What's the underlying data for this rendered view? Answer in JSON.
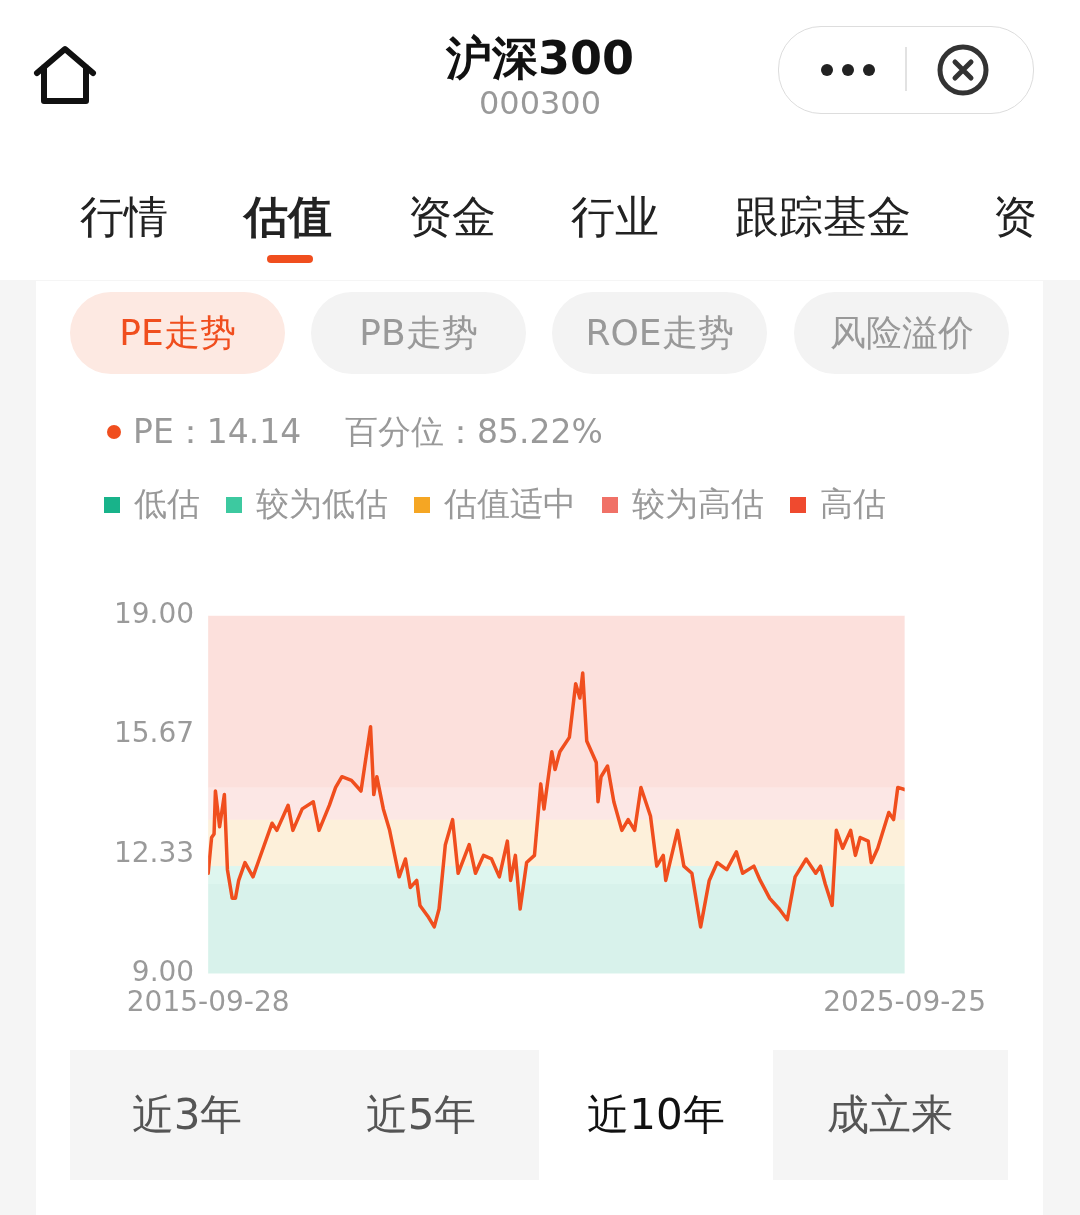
{
  "chart_data": {
    "type": "line",
    "title": "沪深300",
    "subtitle": "000300",
    "annotations": [
      "PE：14.14",
      "百分位：85.22%",
      "行情",
      "估值",
      "资金",
      "行业",
      "跟踪基金",
      "资",
      "PE走势",
      "PB走势",
      "ROE走势",
      "风险溢价",
      "近3年",
      "近5年",
      "近10年",
      "成立来"
    ],
    "x": [
      "2015-09-28",
      "2015-10-16",
      "2015-10-29",
      "2015-11-05",
      "2015-11-27",
      "2015-12-22",
      "2016-01-07",
      "2016-02-01",
      "2016-02-18",
      "2016-03-06",
      "2016-04-08",
      "2016-05-20",
      "2016-06-22",
      "2016-08-28",
      "2016-09-22",
      "2016-11-20",
      "2016-12-15",
      "2017-02-02",
      "2017-04-01",
      "2017-05-01",
      "2017-06-24",
      "2017-07-27",
      "2017-08-29",
      "2017-10-18",
      "2017-12-07",
      "2018-01-26",
      "2018-02-12",
      "2018-02-28",
      "2018-04-03",
      "2018-05-06",
      "2018-06-25",
      "2018-07-28",
      "2018-08-22",
      "2018-09-25",
      "2018-10-12",
      "2018-11-22",
      "2018-12-26",
      "2019-01-20",
      "2019-02-22",
      "2019-04-01",
      "2019-04-30",
      "2019-06-27",
      "2019-07-30",
      "2019-09-10",
      "2019-10-22",
      "2019-12-02",
      "2020-01-13",
      "2020-01-30",
      "2020-02-24",
      "2020-03-20",
      "2020-04-23",
      "2020-06-03",
      "2020-07-06",
      "2020-07-23",
      "2020-09-02",
      "2020-09-19",
      "2020-10-14",
      "2020-12-03",
      "2021-01-05",
      "2021-01-27",
      "2021-02-11",
      "2021-03-04",
      "2021-04-23",
      "2021-05-02",
      "2021-05-18",
      "2021-06-21",
      "2021-07-24",
      "2021-09-04",
      "2021-10-07",
      "2021-11-10",
      "2021-12-13",
      "2022-02-01",
      "2022-03-06",
      "2022-04-09",
      "2022-04-22",
      "2022-06-23",
      "2022-07-26",
      "2022-09-06",
      "2022-10-22",
      "2022-12-06",
      "2023-01-17",
      "2023-03-08",
      "2023-04-27",
      "2023-05-30",
      "2023-07-28",
      "2023-08-30",
      "2023-10-19",
      "2023-12-08",
      "2024-01-19",
      "2024-02-29",
      "2024-04-27",
      "2024-06-16",
      "2024-07-11",
      "2024-08-05",
      "2024-09-10",
      "2024-10-02",
      "2024-11-04",
      "2024-12-16",
      "2025-01-10",
      "2025-02-04",
      "2025-03-18",
      "2025-04-03",
      "2025-05-07",
      "2025-07-04",
      "2025-07-29",
      "2025-08-20",
      "2025-09-25"
    ],
    "series": [
      {
        "color": "#f04e1e",
        "values": [
          11.8,
          12.8,
          12.9,
          14.1,
          13.1,
          14.0,
          11.9,
          11.1,
          11.1,
          11.6,
          12.1,
          11.7,
          12.2,
          13.2,
          13.0,
          13.7,
          13.0,
          13.6,
          13.8,
          13.0,
          13.7,
          14.2,
          14.5,
          14.4,
          14.1,
          15.9,
          14.0,
          14.5,
          13.6,
          13.0,
          11.7,
          12.2,
          11.4,
          11.6,
          10.9,
          10.6,
          10.3,
          10.8,
          12.6,
          13.3,
          11.8,
          12.6,
          11.8,
          12.3,
          12.2,
          11.7,
          12.7,
          11.6,
          12.3,
          10.8,
          12.1,
          12.3,
          14.3,
          13.6,
          15.2,
          14.7,
          15.2,
          15.6,
          17.1,
          16.7,
          17.4,
          15.5,
          14.9,
          13.8,
          14.5,
          14.8,
          13.8,
          13.0,
          13.3,
          13.0,
          14.2,
          13.4,
          12.0,
          12.3,
          11.6,
          13.0,
          12.0,
          11.8,
          10.3,
          11.6,
          12.1,
          11.9,
          12.4,
          11.8,
          12.0,
          11.6,
          11.1,
          10.8,
          10.5,
          11.7,
          12.2,
          11.8,
          12.0,
          11.5,
          10.9,
          13.0,
          12.5,
          13.0,
          12.3,
          12.8,
          12.7,
          12.1,
          12.5,
          13.5,
          13.3,
          14.2,
          14.14
        ]
      }
    ],
    "bands": [
      {
        "axis": "y",
        "from": 9,
        "to": 11.5,
        "label": "低估",
        "color": "#18b38a"
      },
      {
        "axis": "y",
        "from": 11.5,
        "to": 12.0,
        "label": "较为低估",
        "color": "#3dc9a0"
      },
      {
        "axis": "y",
        "from": 12.0,
        "to": 13.3,
        "label": "估值适中",
        "color": "#f5a623"
      },
      {
        "axis": "y",
        "from": 13.3,
        "to": 14.2,
        "label": "较为高估",
        "color": "#f07167"
      },
      {
        "axis": "y",
        "from": 14.2,
        "to": 19,
        "label": "高估",
        "color": "#ef4a2f"
      }
    ],
    "xlim": [
      "2015-09-28",
      "2025-09-25"
    ],
    "xticks": [
      "2015-09-28",
      "2025-09-25"
    ],
    "ylim": [
      9,
      19
    ],
    "yticks": [
      {
        "value": 9,
        "label": "9.00"
      },
      {
        "value": 12.33,
        "label": "12.33"
      },
      {
        "value": 15.67,
        "label": "15.67"
      },
      {
        "value": 19,
        "label": "19.00"
      }
    ],
    "legend": "top",
    "marker": "none",
    "line_style": "solid"
  }
}
